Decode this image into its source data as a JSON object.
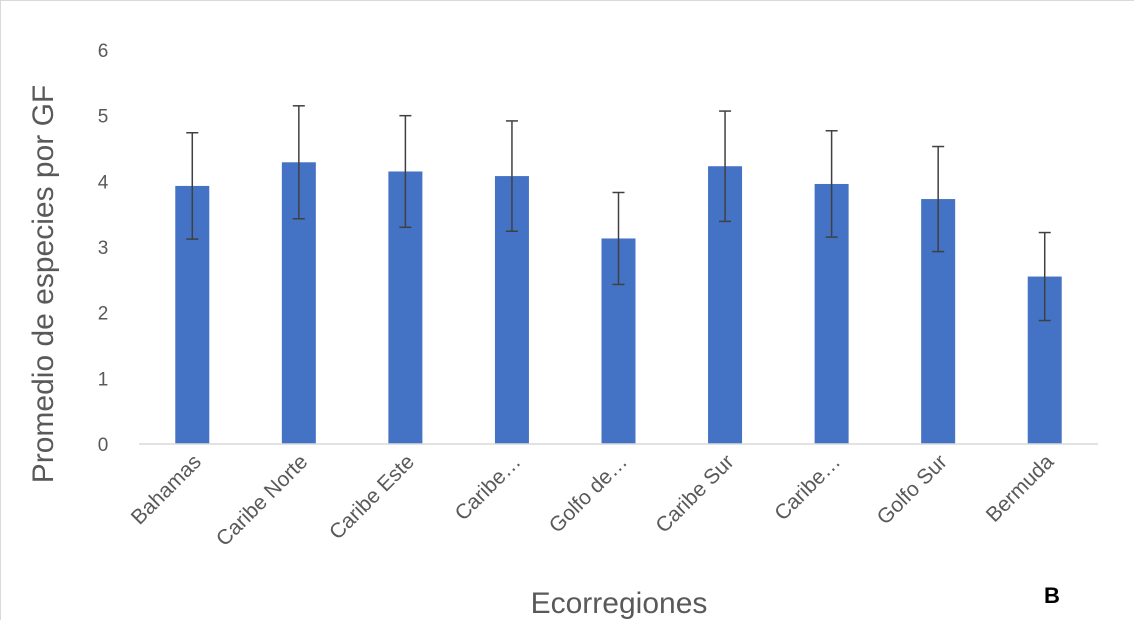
{
  "chart_data": {
    "type": "bar",
    "title": "",
    "xlabel": "Ecorregiones",
    "ylabel": "Promedio de especies por GF",
    "panel_label": "B",
    "categories": [
      "Bahamas",
      "Caribe Norte",
      "Caribe Este",
      "Caribe…",
      "Golfo de…",
      "Caribe Sur",
      "Caribe…",
      "Golfo Sur",
      "Bermuda"
    ],
    "values": [
      3.93,
      4.29,
      4.15,
      4.08,
      3.13,
      4.23,
      3.96,
      3.73,
      2.55
    ],
    "error_bars": [
      0.81,
      0.86,
      0.85,
      0.84,
      0.7,
      0.84,
      0.81,
      0.8,
      0.67
    ],
    "ylim": [
      0,
      6
    ],
    "yticks": [
      0,
      1,
      2,
      3,
      4,
      5,
      6
    ],
    "grid": false,
    "legend": "none",
    "colors": {
      "bar": "#4472c4",
      "error_bar": "#404040",
      "axis": "#d9d9d9",
      "text": "#595959"
    }
  }
}
